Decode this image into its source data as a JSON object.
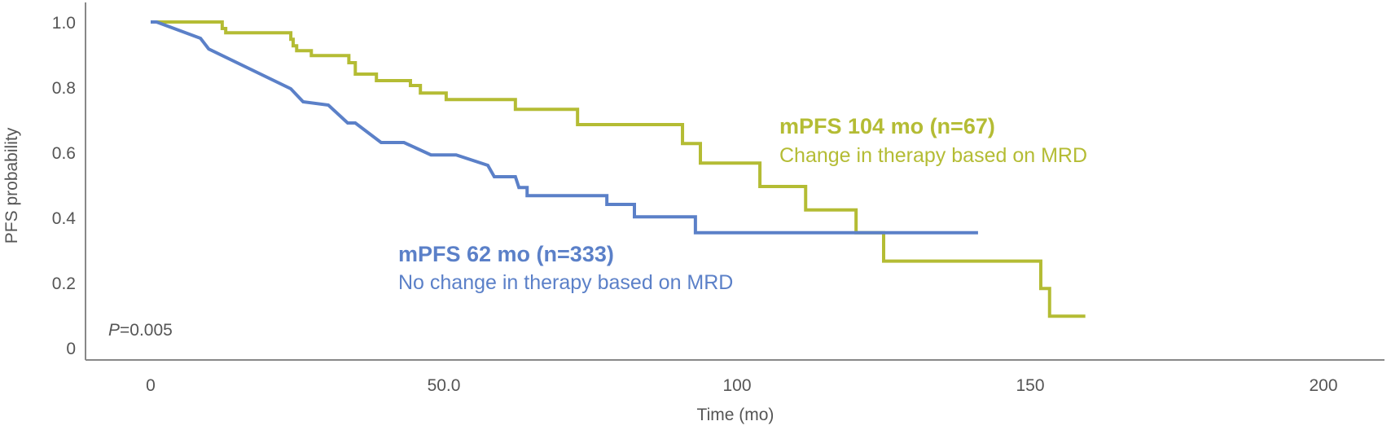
{
  "chart_data": {
    "type": "line",
    "title": "",
    "xlabel": "Time (mo)",
    "ylabel": "PFS probability",
    "xlim": [
      0,
      200
    ],
    "ylim": [
      0,
      1.0
    ],
    "x_ticks": [
      0,
      50,
      100,
      150,
      200
    ],
    "x_tick_labels": [
      "0",
      "50.0",
      "100",
      "150",
      "200"
    ],
    "y_ticks": [
      0,
      0.2,
      0.4,
      0.6,
      0.8,
      1.0
    ],
    "y_tick_labels": [
      "0",
      "0.2",
      "0.4",
      "0.6",
      "0.8",
      "1.0"
    ],
    "grid": false,
    "annotation": {
      "p_label": "P",
      "p_value": "=0.005"
    },
    "series": [
      {
        "name": "mPFS 104 mo (n=67)",
        "subtitle": "Change in therapy based on MRD",
        "color": "#b4bc34",
        "step": true,
        "x": [
          0,
          12.2,
          12.8,
          23.9,
          24.3,
          24.9,
          27.4,
          33.8,
          34.9,
          38.5,
          44.3,
          46,
          50.4,
          62.2,
          72.8,
          90.7,
          93.75,
          103.9,
          111.7,
          120.3,
          125,
          151.8,
          153.3,
          159.4
        ],
        "y": [
          1.0,
          0.98,
          0.967,
          0.947,
          0.927,
          0.912,
          0.897,
          0.875,
          0.84,
          0.82,
          0.805,
          0.782,
          0.762,
          0.732,
          0.685,
          0.627,
          0.567,
          0.495,
          0.423,
          0.353,
          0.266,
          0.182,
          0.097,
          0.097
        ]
      },
      {
        "name": "mPFS 62 mo (n=333)",
        "subtitle": "No change in therapy based on MRD",
        "color": "#5b80c8",
        "step": false,
        "x": [
          0,
          1,
          8.5,
          9.9,
          23.9,
          26,
          30.3,
          33.6,
          34.9,
          39.3,
          43.2,
          47.8,
          52.1,
          57.5,
          58.6,
          62.2,
          62.8,
          64.2,
          64.2,
          77.8,
          77.8,
          82.5,
          82.5,
          92.9,
          92.9,
          141.1
        ],
        "y": [
          1.0,
          1.0,
          0.95,
          0.917,
          0.795,
          0.755,
          0.745,
          0.69,
          0.69,
          0.63,
          0.63,
          0.592,
          0.592,
          0.56,
          0.525,
          0.525,
          0.492,
          0.492,
          0.467,
          0.467,
          0.44,
          0.44,
          0.402,
          0.402,
          0.353,
          0.353
        ]
      }
    ]
  }
}
